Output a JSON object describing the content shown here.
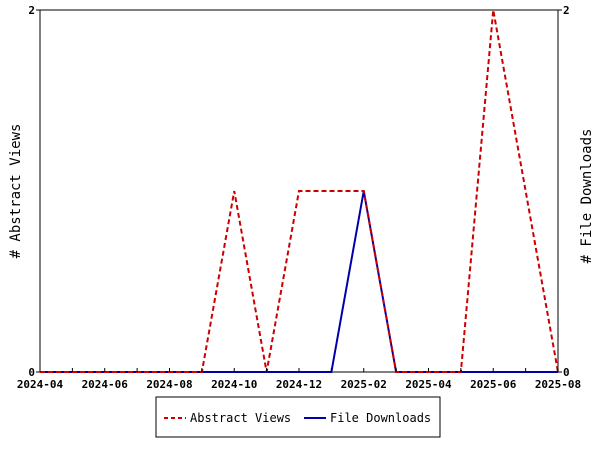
{
  "chart_data": {
    "type": "line",
    "title": "",
    "xlabel": "",
    "ylabel": "# Abstract Views",
    "y2label": "# File Downloads",
    "x": [
      "2024-04",
      "2024-05",
      "2024-06",
      "2024-07",
      "2024-08",
      "2024-09",
      "2024-10",
      "2024-11",
      "2024-12",
      "2025-01",
      "2025-02",
      "2025-03",
      "2025-04",
      "2025-05",
      "2025-06",
      "2025-07",
      "2025-08"
    ],
    "x_tick_labels": [
      "2024-04",
      "2024-06",
      "2024-08",
      "2024-10",
      "2024-12",
      "2025-02",
      "2025-04",
      "2025-06",
      "2025-08"
    ],
    "ylim": [
      0,
      2
    ],
    "y_tick_labels": [
      "0",
      "2"
    ],
    "y2lim": [
      0,
      2
    ],
    "y2_tick_labels": [
      "0",
      "2"
    ],
    "grid": false,
    "legend_position": "bottom",
    "series": [
      {
        "name": "Abstract Views",
        "axis": "left",
        "color": "#cc0000",
        "style": "dashed",
        "values": [
          0,
          0,
          0,
          0,
          0,
          0,
          1,
          0,
          1,
          1,
          1,
          0,
          0,
          0,
          2,
          1,
          0
        ]
      },
      {
        "name": "File Downloads",
        "axis": "right",
        "color": "#0000aa",
        "style": "solid",
        "values": [
          0,
          0,
          0,
          0,
          0,
          0,
          0,
          0,
          0,
          0,
          1,
          0,
          0,
          0,
          0,
          0,
          0
        ]
      }
    ]
  }
}
